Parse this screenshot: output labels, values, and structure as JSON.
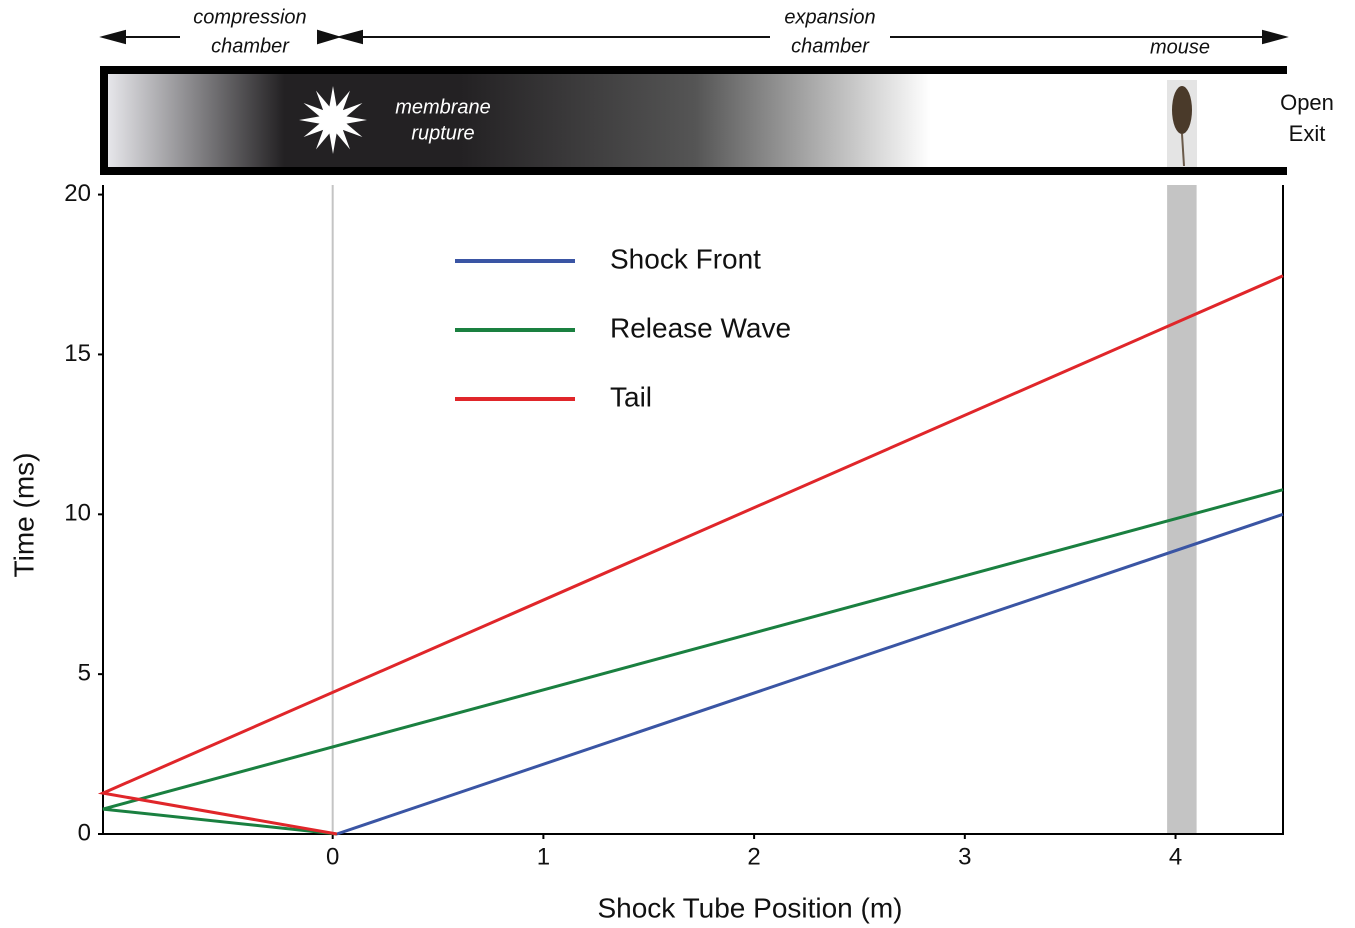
{
  "chart_data": {
    "type": "line",
    "x_label": "Shock Tube Position (m)",
    "y_label": "Time (ms)",
    "xlim": [
      -1.09,
      4.51
    ],
    "ylim": [
      0,
      20.3
    ],
    "xticks": [
      0,
      1,
      2,
      3,
      4
    ],
    "yticks": [
      0,
      5,
      10,
      15,
      20
    ],
    "series": [
      {
        "name": "Shock Front",
        "color": "#3a55a4",
        "x": [
          0.02,
          4.51
        ],
        "values": [
          0,
          10
        ]
      },
      {
        "name": "Release Wave",
        "color": "#1a8040",
        "x": [
          0.02,
          -1.09,
          4.51
        ],
        "values": [
          0,
          0.78,
          10.77
        ]
      },
      {
        "name": "Tail",
        "color": "#e0262a",
        "x": [
          0.02,
          -1.09,
          4.51
        ],
        "values": [
          0,
          1.28,
          17.46
        ]
      }
    ],
    "reference_line_x": 0,
    "mouse_band": [
      3.96,
      4.1
    ],
    "legend": "top-center",
    "schematic": {
      "compression_label": [
        "compression",
        "chamber"
      ],
      "expansion_label": [
        "expansion",
        "chamber"
      ],
      "mouse_label": "mouse",
      "rupture_label": [
        "membrane",
        "rupture"
      ],
      "exit_label": [
        "Open",
        "Exit"
      ]
    }
  }
}
